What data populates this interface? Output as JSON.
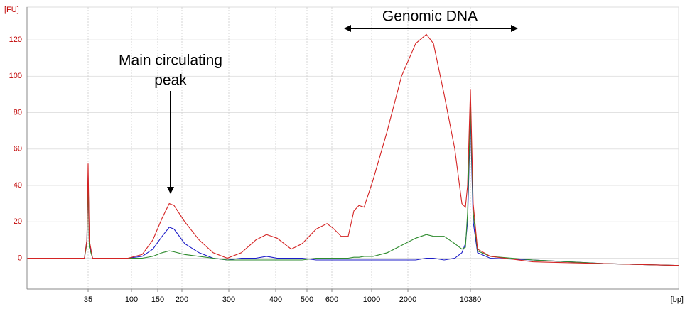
{
  "chart_data": {
    "type": "line",
    "y_label": "[FU]",
    "x_label": "[bp]",
    "annotations": [
      "Main circulating",
      "peak",
      "Genomic DNA"
    ],
    "x": [
      8,
      23,
      32,
      34,
      35,
      36,
      39,
      92,
      118,
      139,
      158,
      172,
      182,
      205,
      232,
      262,
      296,
      324,
      354,
      378,
      404,
      447,
      483,
      535,
      579,
      617,
      676,
      740,
      796,
      849,
      908,
      1028,
      1349,
      1770,
      2457,
      3254,
      3924,
      5197,
      6877,
      8296,
      9108,
      9636,
      10380,
      11200,
      12600,
      17800,
      57000,
      393000,
      3000000
    ],
    "series": [
      {
        "color": "#1c1cc8",
        "values": [
          0,
          0,
          0,
          10,
          45,
          8,
          0,
          0,
          1,
          5,
          12,
          17,
          16,
          8,
          3,
          0,
          -1,
          0,
          0,
          1,
          0,
          0,
          0,
          -1,
          -1,
          -1,
          -1,
          -1,
          -1,
          -1,
          -1,
          -1,
          -1,
          -1,
          -1,
          0,
          0,
          -1,
          0,
          3,
          8,
          20,
          78,
          20,
          3,
          0,
          -1,
          -3,
          -4
        ]
      },
      {
        "color": "#2e8b2e",
        "values": [
          0,
          0,
          0,
          8,
          42,
          6,
          0,
          0,
          0,
          1,
          3,
          4,
          3.5,
          2,
          1,
          0,
          -1,
          -1,
          -1,
          -1,
          -1,
          -1,
          -1,
          0,
          0,
          0,
          0,
          0,
          0.5,
          0.5,
          1,
          1,
          3,
          7,
          11,
          13,
          12,
          12,
          8,
          5,
          6,
          25,
          83,
          25,
          4,
          1,
          -1,
          -3,
          -4
        ]
      },
      {
        "color": "#d42424",
        "values": [
          0,
          0,
          0,
          10,
          52,
          10,
          0,
          0,
          2,
          10,
          22,
          30,
          29,
          20,
          10,
          3,
          0,
          3,
          10,
          13,
          11,
          5,
          8,
          16,
          19,
          16,
          12,
          12,
          26,
          29,
          28,
          43,
          70,
          100,
          118,
          123,
          118,
          90,
          60,
          30,
          28,
          40,
          93,
          30,
          5,
          1,
          -2,
          -3,
          -4
        ]
      }
    ],
    "xlim": [
      8,
      3000000
    ],
    "xticks": [
      35,
      100,
      150,
      200,
      300,
      400,
      500,
      600,
      1000,
      2000,
      10380
    ],
    "ylim": [
      -17,
      138
    ],
    "yticks": [
      0,
      20,
      40,
      60,
      80,
      100,
      120
    ],
    "grid": true
  }
}
